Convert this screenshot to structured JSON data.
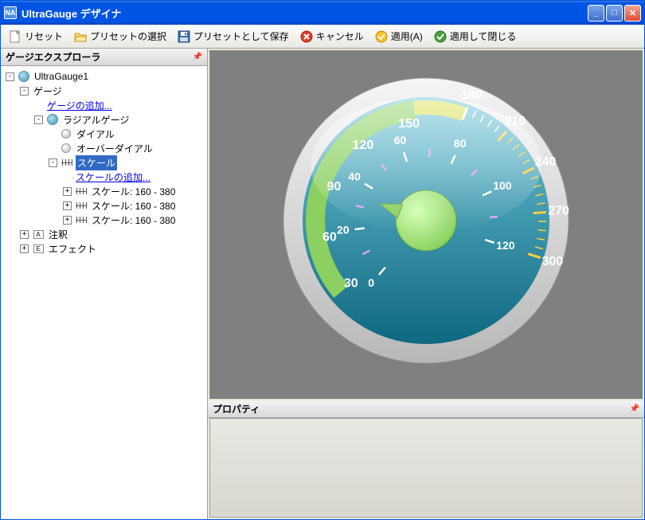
{
  "window": {
    "title": "UltraGauge デザイナ",
    "icon_label": "NA"
  },
  "toolbar": {
    "reset": "リセット",
    "select_preset": "プリセットの選択",
    "save_preset": "プリセットとして保存",
    "cancel": "キャンセル",
    "apply": "適用(A)",
    "apply_close": "適用して閉じる"
  },
  "panels": {
    "explorer": "ゲージエクスプローラ",
    "property": "プロパティ"
  },
  "tree": {
    "root": "UltraGauge1",
    "gauge": "ゲージ",
    "add_gauge": "ゲージの追加...",
    "radial": "ラジアルゲージ",
    "dial": "ダイアル",
    "overdial": "オーバーダイアル",
    "scale": "スケール",
    "add_scale": "スケールの追加...",
    "scale1": "スケール: 160 - 380",
    "scale2": "スケール: 160 - 380",
    "scale3": "スケール: 160 - 380",
    "annotation": "注釈",
    "effect": "エフェクト"
  },
  "gauge": {
    "outer_labels": [
      "30",
      "60",
      "90",
      "120",
      "150",
      "180",
      "210",
      "240",
      "270",
      "300"
    ],
    "outer_angles": [
      220,
      190,
      160,
      130,
      100,
      70,
      48,
      26,
      4,
      -18
    ],
    "outer_color": "#ffffff",
    "outer_highlight_indices": [
      6,
      7,
      8,
      9
    ],
    "outer_highlight_color": "#ffd040",
    "inner_labels": [
      "0",
      "20",
      "40",
      "60",
      "80",
      "100",
      "120"
    ],
    "inner_angles": [
      229,
      187,
      149,
      108,
      66,
      24,
      -18
    ],
    "inner_color": "#ffffff",
    "face_gradient_from": "#6fc5d8",
    "face_gradient_to": "#0e6880",
    "bezel_light": "#f5f5f5",
    "bezel_dark": "#b8b8b8",
    "hub_color": "#8bd060",
    "needle_color": "#8bd060",
    "arc_color": "#8bd060",
    "arc_yellow": "#d8e050",
    "tick_color": "#ffffff",
    "tick_accent": "#e0a0ff",
    "outer_radius": 165,
    "face_radius": 155,
    "hub_radius": 38,
    "label_font_size": 16,
    "inner_label_font_size": 14
  }
}
